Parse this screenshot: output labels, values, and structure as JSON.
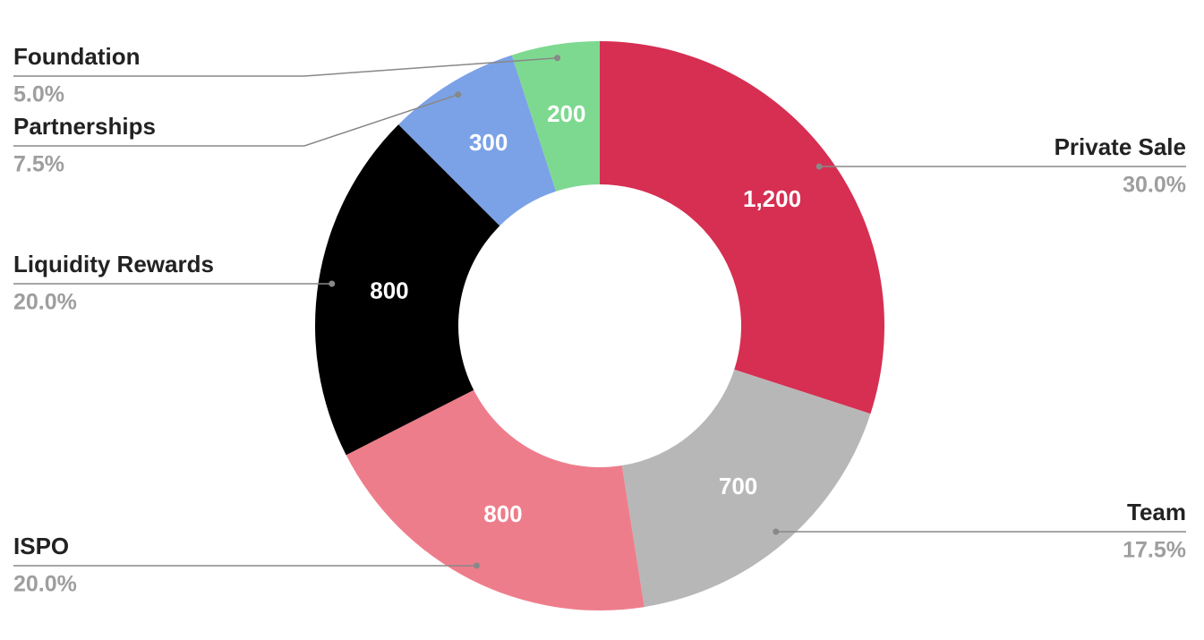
{
  "chart_data": {
    "type": "pie",
    "donut": true,
    "categories": [
      "Private Sale",
      "Team",
      "ISPO",
      "Liquidity Rewards",
      "Partnerships",
      "Foundation"
    ],
    "values": [
      1200,
      700,
      800,
      800,
      300,
      200
    ],
    "value_labels": [
      "1,200",
      "700",
      "800",
      "800",
      "300",
      "200"
    ],
    "percent_labels": [
      "30.0%",
      "17.5%",
      "20.0%",
      "20.0%",
      "7.5%",
      "5.0%"
    ],
    "colors": [
      "#d62f52",
      "#b7b7b7",
      "#ee7d8b",
      "#000000",
      "#7ba2e6",
      "#7ed990"
    ]
  }
}
